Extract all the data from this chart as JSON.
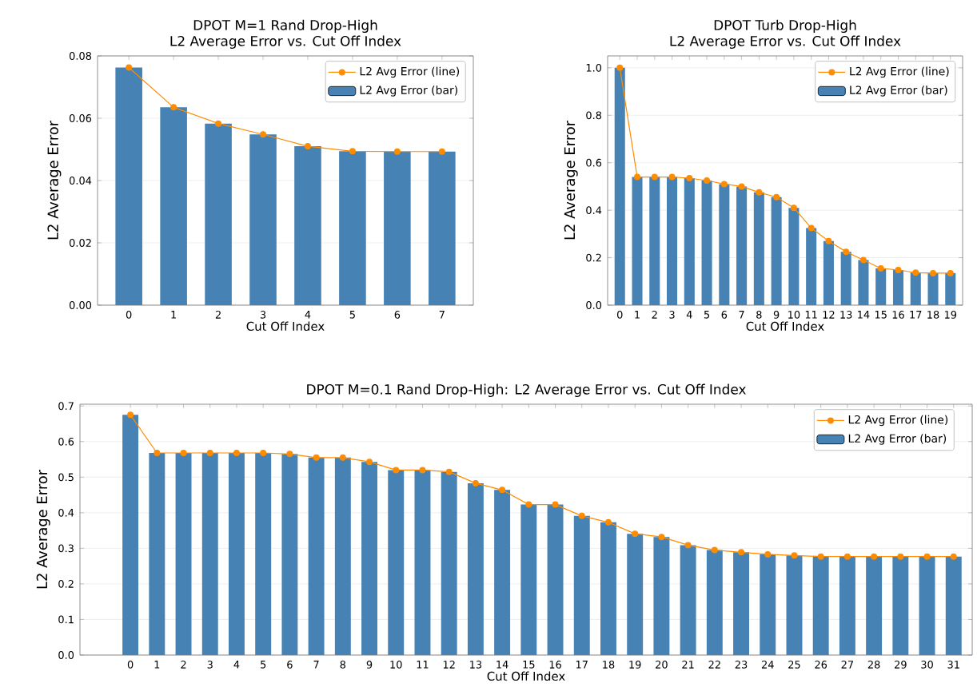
{
  "chart_data": [
    {
      "type": "bar",
      "title": "DPOT M=1 Rand Drop-High",
      "subtitle": "L2 Average Error vs. Cut Off Index",
      "xlabel": "Cut Off Index",
      "ylabel": "L2 Average Error",
      "categories": [
        "0",
        "1",
        "2",
        "3",
        "4",
        "5",
        "6",
        "7"
      ],
      "series": [
        {
          "name": "L2 Avg Error (line)",
          "type": "line",
          "color": "#ff8c00",
          "values": [
            0.0763,
            0.0635,
            0.0583,
            0.0548,
            0.051,
            0.0494,
            0.0493,
            0.0493
          ]
        },
        {
          "name": "L2 Avg Error (bar)",
          "color": "#4682b4",
          "values": [
            0.0763,
            0.0635,
            0.0583,
            0.0548,
            0.051,
            0.0494,
            0.0493,
            0.0493
          ]
        }
      ],
      "ylim": [
        0,
        0.08
      ],
      "yticks": [
        {
          "value": 0,
          "label": "0.00"
        },
        {
          "value": 0.02,
          "label": "0.02"
        },
        {
          "value": 0.04,
          "label": "0.04"
        },
        {
          "value": 0.06,
          "label": "0.06"
        },
        {
          "value": 0.08,
          "label": "0.08"
        }
      ],
      "grid": "y",
      "legend": "top right",
      "marker": "circle"
    },
    {
      "type": "bar",
      "title": "DPOT Turb Drop-High",
      "subtitle": "L2 Average Error vs. Cut Off Index",
      "xlabel": "Cut Off Index",
      "ylabel": "L2 Average Error",
      "categories": [
        "0",
        "1",
        "2",
        "3",
        "4",
        "5",
        "6",
        "7",
        "8",
        "9",
        "10",
        "11",
        "12",
        "13",
        "14",
        "15",
        "16",
        "17",
        "18",
        "19"
      ],
      "series": [
        {
          "name": "L2 Avg Error (line)",
          "type": "line",
          "color": "#ff8c00",
          "values": [
            1.0,
            0.54,
            0.54,
            0.54,
            0.535,
            0.525,
            0.51,
            0.5,
            0.475,
            0.455,
            0.41,
            0.325,
            0.27,
            0.225,
            0.19,
            0.155,
            0.148,
            0.137,
            0.135,
            0.135
          ]
        },
        {
          "name": "L2 Avg Error (bar)",
          "color": "#4682b4",
          "values": [
            1.0,
            0.54,
            0.54,
            0.54,
            0.535,
            0.525,
            0.51,
            0.5,
            0.475,
            0.455,
            0.41,
            0.325,
            0.27,
            0.225,
            0.19,
            0.155,
            0.148,
            0.137,
            0.135,
            0.135
          ]
        }
      ],
      "ylim": [
        0,
        1.05
      ],
      "yticks": [
        {
          "value": 0,
          "label": "0.0"
        },
        {
          "value": 0.2,
          "label": "0.2"
        },
        {
          "value": 0.4,
          "label": "0.4"
        },
        {
          "value": 0.6,
          "label": "0.6"
        },
        {
          "value": 0.8,
          "label": "0.8"
        },
        {
          "value": 1.0,
          "label": "1.0"
        }
      ],
      "grid": "y",
      "legend": "top right",
      "marker": "circle"
    },
    {
      "type": "bar",
      "title": "DPOT M=0.1 Rand Drop-High: L2 Average Error vs. Cut Off Index",
      "xlabel": "Cut Off Index",
      "ylabel": "L2 Average Error",
      "categories": [
        "0",
        "1",
        "2",
        "3",
        "4",
        "5",
        "6",
        "7",
        "8",
        "9",
        "10",
        "11",
        "12",
        "13",
        "14",
        "15",
        "16",
        "17",
        "18",
        "19",
        "20",
        "21",
        "22",
        "23",
        "24",
        "25",
        "26",
        "27",
        "28",
        "29",
        "30",
        "31"
      ],
      "series": [
        {
          "name": "L2 Avg Error (line)",
          "type": "line",
          "color": "#ff8c00",
          "values": [
            0.675,
            0.568,
            0.568,
            0.568,
            0.568,
            0.568,
            0.565,
            0.555,
            0.555,
            0.543,
            0.52,
            0.52,
            0.515,
            0.483,
            0.464,
            0.423,
            0.423,
            0.391,
            0.373,
            0.341,
            0.332,
            0.309,
            0.295,
            0.289,
            0.283,
            0.28,
            0.277,
            0.277,
            0.277,
            0.277,
            0.277,
            0.277
          ]
        },
        {
          "name": "L2 Avg Error (bar)",
          "color": "#4682b4",
          "values": [
            0.675,
            0.568,
            0.568,
            0.568,
            0.568,
            0.568,
            0.565,
            0.555,
            0.555,
            0.543,
            0.52,
            0.52,
            0.515,
            0.483,
            0.464,
            0.423,
            0.423,
            0.391,
            0.373,
            0.341,
            0.332,
            0.309,
            0.295,
            0.289,
            0.283,
            0.28,
            0.277,
            0.277,
            0.277,
            0.277,
            0.277,
            0.277
          ]
        }
      ],
      "ylim": [
        0,
        0.705
      ],
      "yticks": [
        {
          "value": 0,
          "label": "0.0"
        },
        {
          "value": 0.1,
          "label": "0.1"
        },
        {
          "value": 0.2,
          "label": "0.2"
        },
        {
          "value": 0.3,
          "label": "0.3"
        },
        {
          "value": 0.4,
          "label": "0.4"
        },
        {
          "value": 0.5,
          "label": "0.5"
        },
        {
          "value": 0.6,
          "label": "0.6"
        },
        {
          "value": 0.7,
          "label": "0.7"
        }
      ],
      "grid": "y",
      "legend": "top right",
      "marker": "circle"
    }
  ]
}
